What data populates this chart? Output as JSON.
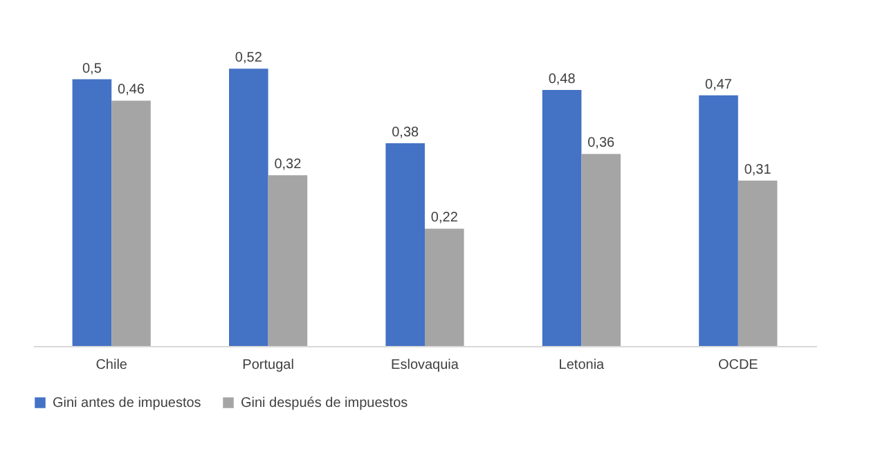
{
  "chart_data": {
    "type": "bar",
    "categories": [
      "Chile",
      "Portugal",
      "Eslovaquia",
      "Letonia",
      "OCDE"
    ],
    "series": [
      {
        "name": "Gini antes de impuestos",
        "color": "#4472c4",
        "values": [
          0.5,
          0.52,
          0.38,
          0.48,
          0.47
        ],
        "value_labels": [
          "0,5",
          "0,52",
          "0,38",
          "0,48",
          "0,47"
        ]
      },
      {
        "name": "Gini después de impuestos",
        "color": "#a5a5a5",
        "values": [
          0.46,
          0.32,
          0.22,
          0.36,
          0.31
        ],
        "value_labels": [
          "0,46",
          "0,32",
          "0,22",
          "0,36",
          "0,31"
        ]
      }
    ],
    "legend": "bottom",
    "grid": false
  }
}
